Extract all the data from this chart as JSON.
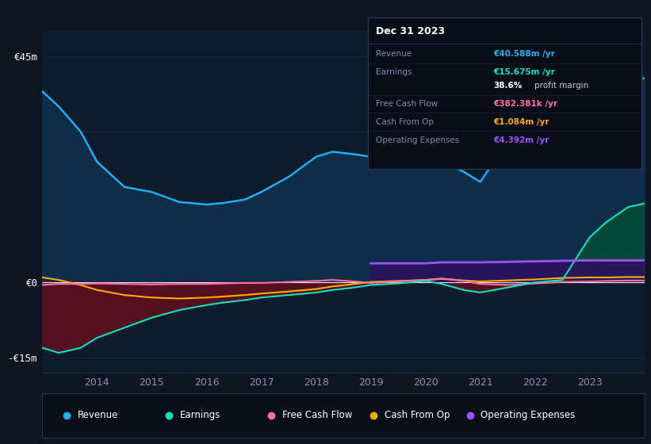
{
  "bg_color": "#0d1520",
  "plot_bg_color": "#0d1b2a",
  "years": [
    2013.0,
    2013.3,
    2013.7,
    2014.0,
    2014.5,
    2015.0,
    2015.5,
    2016.0,
    2016.3,
    2016.7,
    2017.0,
    2017.5,
    2018.0,
    2018.3,
    2018.7,
    2019.0,
    2019.5,
    2020.0,
    2020.3,
    2020.7,
    2021.0,
    2021.5,
    2022.0,
    2022.5,
    2023.0,
    2023.3,
    2023.7,
    2024.0
  ],
  "revenue": [
    38,
    35,
    30,
    24,
    19,
    18,
    16,
    15.5,
    15.8,
    16.5,
    18,
    21,
    25,
    26,
    25.5,
    25,
    24.5,
    25,
    24,
    22,
    20,
    28,
    38,
    44,
    43,
    41,
    40.6,
    40.6
  ],
  "earnings": [
    -13,
    -14,
    -13,
    -11,
    -9,
    -7,
    -5.5,
    -4.5,
    -4,
    -3.5,
    -3,
    -2.5,
    -2,
    -1.5,
    -1,
    -0.5,
    -0.2,
    0.3,
    -0.3,
    -1.5,
    -2,
    -1,
    0,
    0.5,
    9,
    12,
    15,
    15.7
  ],
  "free_cash_flow": [
    -0.5,
    -0.3,
    -0.3,
    -0.2,
    -0.3,
    -0.4,
    -0.3,
    -0.3,
    -0.2,
    -0.1,
    -0.1,
    0.1,
    0.3,
    0.5,
    0.2,
    -0.1,
    0.2,
    0.5,
    0.8,
    0.3,
    -0.3,
    -0.5,
    -0.2,
    0.1,
    0.2,
    0.3,
    0.38,
    0.38
  ],
  "cash_from_op": [
    1.0,
    0.5,
    -0.5,
    -1.5,
    -2.5,
    -3.0,
    -3.2,
    -3.0,
    -2.8,
    -2.5,
    -2.2,
    -1.8,
    -1.3,
    -0.8,
    -0.3,
    0.1,
    0.3,
    0.5,
    0.7,
    0.4,
    0.2,
    0.4,
    0.6,
    0.9,
    1.0,
    1.0,
    1.08,
    1.08
  ],
  "opex_years": [
    2019.0,
    2019.5,
    2020.0,
    2020.3,
    2020.7,
    2021.0,
    2021.5,
    2022.0,
    2022.5,
    2023.0,
    2023.3,
    2023.7,
    2024.0
  ],
  "opex_vals": [
    3.8,
    3.8,
    3.8,
    4.0,
    4.0,
    4.0,
    4.1,
    4.2,
    4.3,
    4.4,
    4.39,
    4.39,
    4.39
  ],
  "revenue_color": "#1ab0f5",
  "earnings_color": "#00e5c0",
  "fcf_color": "#ff6fa0",
  "cashop_color": "#ffaa00",
  "opex_color": "#a050ff",
  "revenue_fill": "#0d2d4a",
  "earnings_fill_neg": "#5a1020",
  "opex_fill": "#2d1060",
  "ylim": [
    -18,
    50
  ],
  "xticks": [
    2014,
    2015,
    2016,
    2017,
    2018,
    2019,
    2020,
    2021,
    2022,
    2023
  ],
  "legend_items": [
    {
      "label": "Revenue",
      "color": "#1ab0f5"
    },
    {
      "label": "Earnings",
      "color": "#00e5c0"
    },
    {
      "label": "Free Cash Flow",
      "color": "#ff6fa0"
    },
    {
      "label": "Cash From Op",
      "color": "#ffaa00"
    },
    {
      "label": "Operating Expenses",
      "color": "#a050ff"
    }
  ]
}
